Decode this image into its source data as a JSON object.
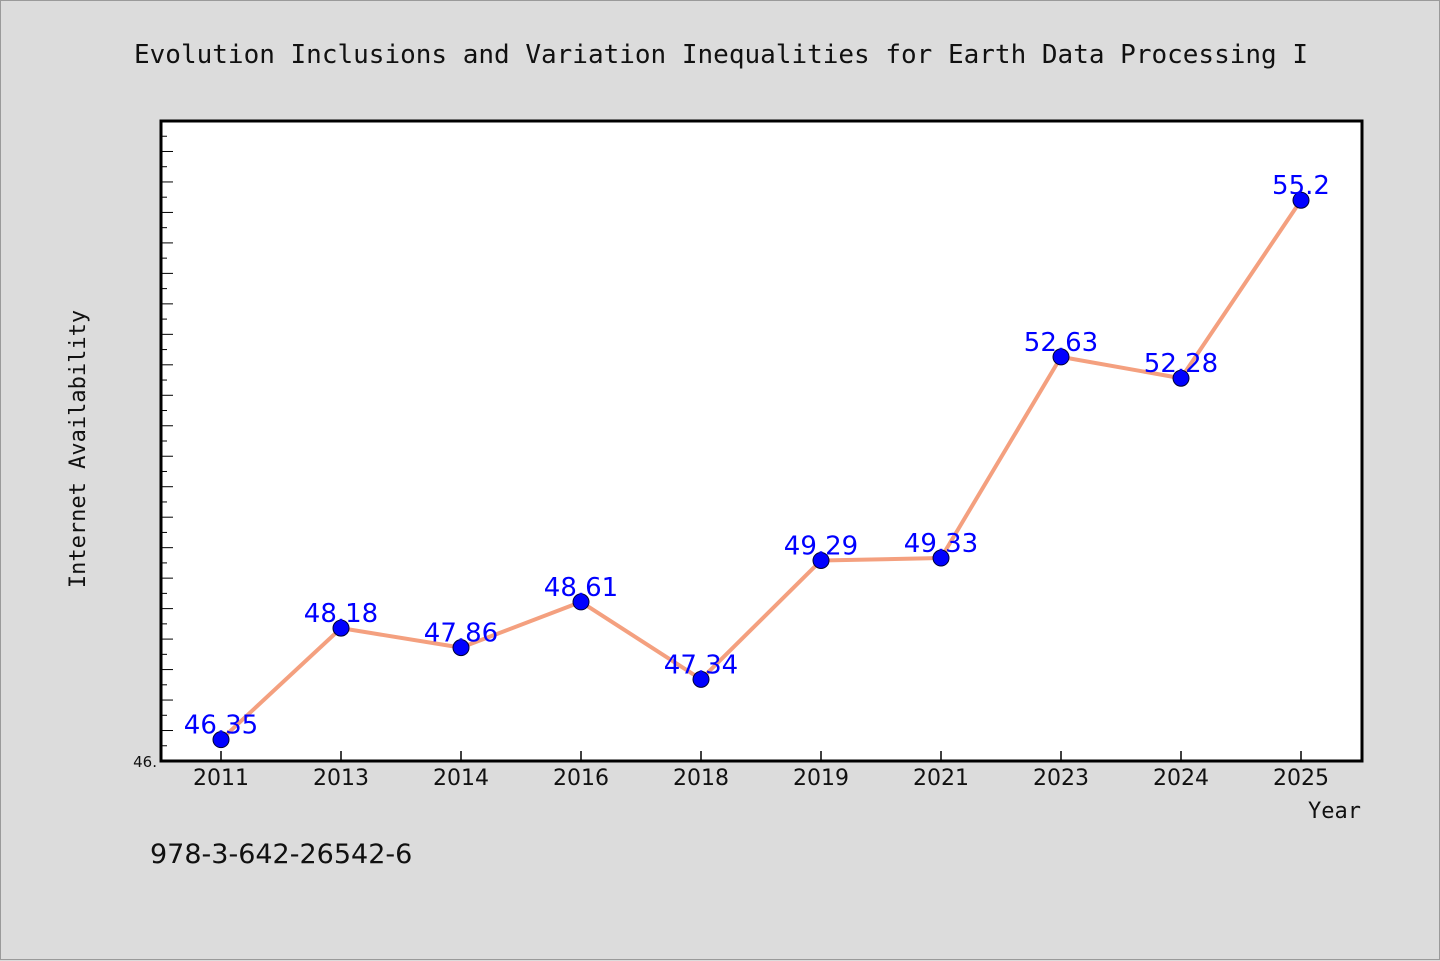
{
  "chart_data": {
    "type": "line",
    "title": "Evolution Inclusions and Variation Inequalities for Earth Data Processing I",
    "xlabel": "Year",
    "ylabel": "Internet Availability",
    "categories": [
      "2011",
      "2013",
      "2014",
      "2016",
      "2018",
      "2019",
      "2021",
      "2023",
      "2024",
      "2025"
    ],
    "series": [
      {
        "values": [
          46.35,
          48.18,
          47.86,
          48.61,
          47.34,
          49.29,
          49.33,
          52.63,
          52.28,
          55.2
        ],
        "data_labels": [
          "46.35",
          "48.18",
          "47.86",
          "48.61",
          "47.34",
          "49.29",
          "49.33",
          "52.63",
          "52.28",
          "55.2"
        ]
      }
    ],
    "ylim": [
      46.0,
      56.5
    ],
    "y_min_label": "46.",
    "grid": false,
    "legend": "none",
    "line_color": "#f4a07f",
    "marker_color": "#0000ff",
    "label_color": "#0000ff"
  },
  "footer": {
    "isbn": "978-3-642-26542-6"
  }
}
